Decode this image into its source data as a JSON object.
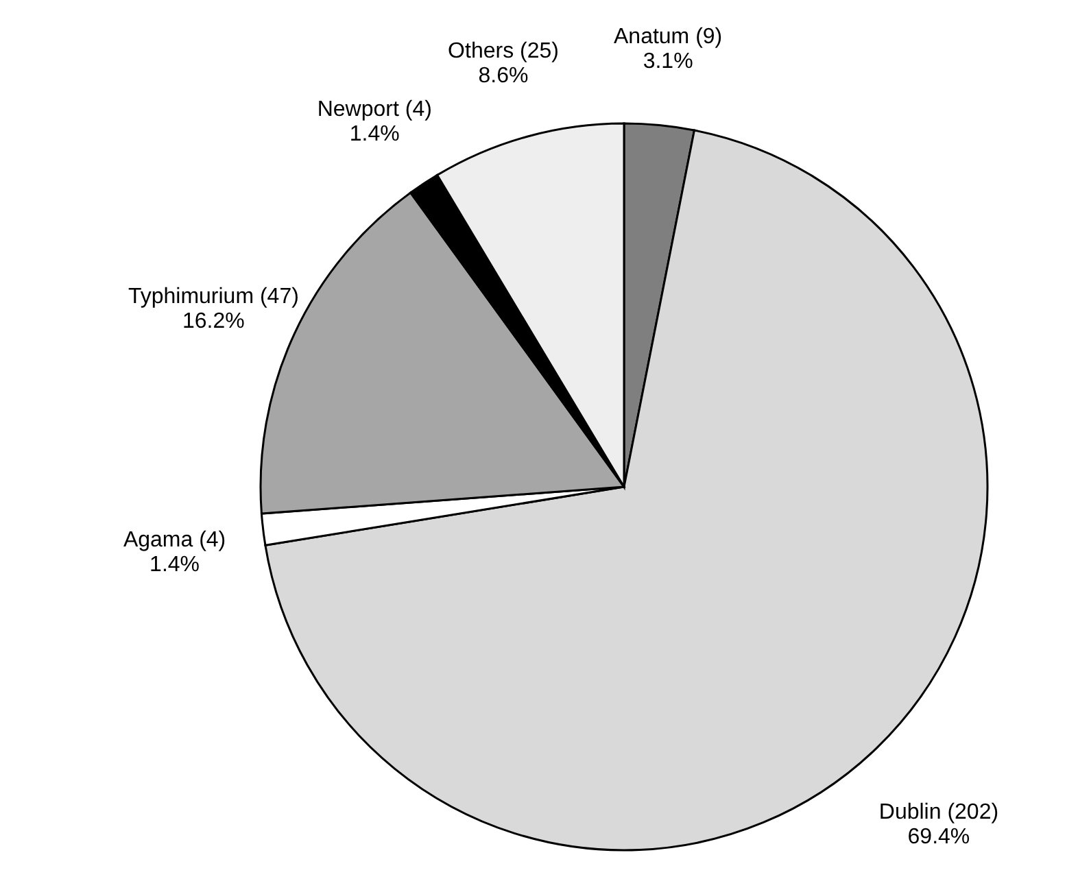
{
  "chart_data": {
    "type": "pie",
    "categories": [
      "Anatum (9)",
      "Dublin (202)",
      "Agama (4)",
      "Typhimurium (47)",
      "Newport (4)",
      "Others (25)"
    ],
    "values": [
      3.1,
      69.4,
      1.4,
      16.2,
      1.4,
      8.6
    ],
    "value_labels": [
      "3.1%",
      "69.4%",
      "1.4%",
      "16.2%",
      "1.4%",
      "8.6%"
    ],
    "colors": [
      "#7f7f7f",
      "#d9d9d9",
      "#ffffff",
      "#a6a6a6",
      "#000000",
      "#eeeeee"
    ]
  }
}
